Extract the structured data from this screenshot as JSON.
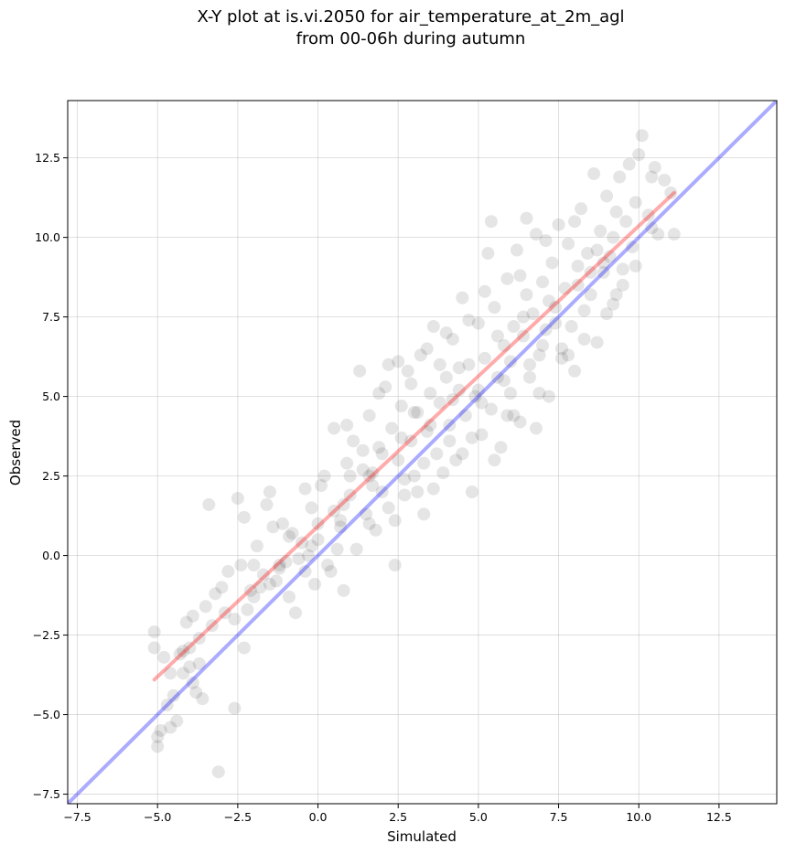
{
  "chart_data": {
    "type": "scatter",
    "title": "X-Y plot at is.vi.2050 for air_temperature_at_2m_agl",
    "subtitle": "from 00-06h during autumn",
    "xlabel": "Simulated",
    "ylabel": "Observed",
    "xlim": [
      -7.8,
      14.3
    ],
    "ylim": [
      -7.8,
      14.3
    ],
    "xticks": [
      -7.5,
      -5.0,
      -2.5,
      0.0,
      2.5,
      5.0,
      7.5,
      10.0,
      12.5
    ],
    "yticks": [
      -7.5,
      -5.0,
      -2.5,
      0.0,
      2.5,
      5.0,
      7.5,
      10.0,
      12.5
    ],
    "xtick_labels": [
      "−7.5",
      "−5.0",
      "−2.5",
      "0.0",
      "2.5",
      "5.0",
      "7.5",
      "10.0",
      "12.5"
    ],
    "ytick_labels": [
      "−7.5",
      "−5.0",
      "−2.5",
      "0.0",
      "2.5",
      "5.0",
      "7.5",
      "10.0",
      "12.5"
    ],
    "grid": true,
    "colors": {
      "points": "#000000",
      "identity_line": "#0000ff",
      "fit_line": "#ff0000"
    },
    "series": [
      {
        "type": "scatter",
        "points": [
          [
            -5.1,
            -2.4
          ],
          [
            -5.1,
            -2.9
          ],
          [
            -4.8,
            -3.2
          ],
          [
            -4.9,
            -5.5
          ],
          [
            -5.0,
            -5.7
          ],
          [
            -5.0,
            -6.0
          ],
          [
            -4.7,
            -4.7
          ],
          [
            -4.5,
            -4.4
          ],
          [
            -4.6,
            -5.4
          ],
          [
            -4.4,
            -5.2
          ],
          [
            -4.2,
            -3.0
          ],
          [
            -4.0,
            -3.5
          ],
          [
            -4.1,
            -2.1
          ],
          [
            -3.9,
            -1.9
          ],
          [
            -4.2,
            -3.7
          ],
          [
            -3.9,
            -4.0
          ],
          [
            -3.7,
            -2.6
          ],
          [
            -3.6,
            -4.5
          ],
          [
            -3.5,
            -1.6
          ],
          [
            -3.2,
            -1.2
          ],
          [
            -3.4,
            1.6
          ],
          [
            -3.1,
            -6.8
          ],
          [
            -2.8,
            -0.5
          ],
          [
            -2.6,
            -4.8
          ],
          [
            -2.5,
            1.8
          ],
          [
            -2.3,
            1.2
          ],
          [
            -2.3,
            -2.9
          ],
          [
            -2.1,
            -1.1
          ],
          [
            -1.9,
            0.3
          ],
          [
            -1.7,
            -0.6
          ],
          [
            -1.6,
            1.6
          ],
          [
            -1.4,
            0.9
          ],
          [
            -1.5,
            2.0
          ],
          [
            -1.2,
            -0.3
          ],
          [
            -1.1,
            1.0
          ],
          [
            -0.9,
            -1.3
          ],
          [
            -0.8,
            0.7
          ],
          [
            -0.7,
            -1.8
          ],
          [
            -0.5,
            0.4
          ],
          [
            -0.4,
            2.1
          ],
          [
            -0.3,
            0.0
          ],
          [
            -0.1,
            -0.9
          ],
          [
            0.0,
            1.0
          ],
          [
            0.2,
            2.5
          ],
          [
            0.3,
            -0.3
          ],
          [
            0.5,
            1.4
          ],
          [
            0.5,
            4.0
          ],
          [
            0.7,
            0.9
          ],
          [
            0.8,
            -1.1
          ],
          [
            0.9,
            2.9
          ],
          [
            1.0,
            1.9
          ],
          [
            1.1,
            3.6
          ],
          [
            1.2,
            0.2
          ],
          [
            1.4,
            2.7
          ],
          [
            1.5,
            1.3
          ],
          [
            1.6,
            4.4
          ],
          [
            1.7,
            2.2
          ],
          [
            1.8,
            0.8
          ],
          [
            1.9,
            3.4
          ],
          [
            2.0,
            2.0
          ],
          [
            2.1,
            5.3
          ],
          [
            2.2,
            1.5
          ],
          [
            2.3,
            4.0
          ],
          [
            2.4,
            -0.3
          ],
          [
            2.5,
            3.0
          ],
          [
            2.6,
            4.7
          ],
          [
            2.7,
            1.9
          ],
          [
            2.8,
            5.8
          ],
          [
            2.9,
            3.6
          ],
          [
            3.0,
            2.5
          ],
          [
            3.1,
            4.5
          ],
          [
            3.2,
            6.3
          ],
          [
            3.3,
            1.3
          ],
          [
            3.4,
            3.9
          ],
          [
            3.5,
            5.1
          ],
          [
            3.6,
            7.2
          ],
          [
            3.7,
            3.2
          ],
          [
            3.8,
            4.8
          ],
          [
            3.9,
            2.6
          ],
          [
            4.0,
            5.6
          ],
          [
            4.1,
            4.1
          ],
          [
            4.2,
            6.8
          ],
          [
            4.3,
            3.0
          ],
          [
            4.4,
            5.2
          ],
          [
            4.5,
            8.1
          ],
          [
            4.6,
            4.4
          ],
          [
            4.7,
            6.0
          ],
          [
            4.8,
            2.0
          ],
          [
            4.9,
            5.0
          ],
          [
            5.0,
            7.3
          ],
          [
            5.1,
            3.8
          ],
          [
            5.2,
            6.2
          ],
          [
            5.3,
            9.5
          ],
          [
            5.4,
            4.6
          ],
          [
            5.5,
            7.8
          ],
          [
            5.6,
            5.6
          ],
          [
            5.7,
            3.4
          ],
          [
            5.8,
            6.6
          ],
          [
            5.9,
            8.7
          ],
          [
            6.0,
            5.1
          ],
          [
            6.1,
            7.2
          ],
          [
            6.2,
            9.6
          ],
          [
            6.3,
            4.2
          ],
          [
            6.4,
            6.9
          ],
          [
            6.5,
            8.2
          ],
          [
            6.6,
            5.6
          ],
          [
            6.7,
            7.6
          ],
          [
            6.8,
            10.1
          ],
          [
            6.9,
            6.3
          ],
          [
            7.0,
            8.6
          ],
          [
            7.1,
            7.1
          ],
          [
            7.2,
            5.0
          ],
          [
            7.3,
            9.2
          ],
          [
            7.4,
            7.8
          ],
          [
            7.5,
            10.4
          ],
          [
            7.6,
            6.5
          ],
          [
            7.7,
            8.4
          ],
          [
            7.8,
            9.8
          ],
          [
            7.9,
            7.2
          ],
          [
            8.0,
            5.8
          ],
          [
            8.1,
            9.1
          ],
          [
            8.2,
            10.9
          ],
          [
            8.3,
            7.7
          ],
          [
            8.4,
            9.5
          ],
          [
            8.5,
            8.2
          ],
          [
            8.6,
            12.0
          ],
          [
            8.7,
            6.7
          ],
          [
            8.8,
            10.2
          ],
          [
            8.9,
            8.9
          ],
          [
            9.0,
            11.3
          ],
          [
            9.1,
            9.4
          ],
          [
            9.2,
            7.9
          ],
          [
            9.3,
            10.8
          ],
          [
            9.4,
            11.9
          ],
          [
            9.5,
            9.0
          ],
          [
            9.6,
            10.5
          ],
          [
            9.7,
            12.3
          ],
          [
            9.8,
            9.7
          ],
          [
            9.9,
            11.1
          ],
          [
            10.0,
            12.6
          ],
          [
            10.1,
            13.2
          ],
          [
            10.3,
            10.7
          ],
          [
            10.4,
            11.9
          ],
          [
            10.5,
            12.2
          ],
          [
            10.6,
            10.1
          ],
          [
            10.8,
            11.8
          ],
          [
            11.0,
            11.4
          ],
          [
            11.1,
            10.1
          ],
          [
            9.5,
            8.5
          ],
          [
            8.7,
            9.6
          ],
          [
            6.5,
            10.6
          ],
          [
            5.4,
            10.5
          ],
          [
            3.4,
            6.5
          ],
          [
            2.2,
            6.0
          ],
          [
            1.3,
            5.8
          ],
          [
            0.9,
            4.1
          ],
          [
            1.9,
            5.1
          ],
          [
            2.5,
            6.1
          ],
          [
            3.1,
            2.0
          ],
          [
            4.5,
            3.2
          ],
          [
            5.5,
            3.0
          ],
          [
            6.1,
            4.4
          ],
          [
            6.8,
            4.0
          ],
          [
            7.6,
            6.2
          ],
          [
            8.3,
            6.8
          ],
          [
            9.3,
            8.2
          ],
          [
            0.4,
            -0.5
          ],
          [
            -0.6,
            -0.1
          ],
          [
            -1.8,
            -1.0
          ],
          [
            -2.4,
            -0.3
          ],
          [
            -2.9,
            -1.8
          ],
          [
            -3.3,
            -2.2
          ],
          [
            -4.3,
            -3.1
          ],
          [
            -3.7,
            -3.4
          ],
          [
            -2.2,
            -1.7
          ],
          [
            -1.3,
            -0.8
          ],
          [
            -0.2,
            1.5
          ],
          [
            0.8,
            1.6
          ],
          [
            1.6,
            1.0
          ],
          [
            2.4,
            1.1
          ],
          [
            3.3,
            2.9
          ],
          [
            4.2,
            4.9
          ],
          [
            5.0,
            5.2
          ],
          [
            5.8,
            5.5
          ],
          [
            6.6,
            6.0
          ],
          [
            7.4,
            7.3
          ],
          [
            8.1,
            8.5
          ],
          [
            8.9,
            9.2
          ],
          [
            3.8,
            6.0
          ],
          [
            4.7,
            7.4
          ],
          [
            2.9,
            5.4
          ],
          [
            1.4,
            3.3
          ],
          [
            0.1,
            2.2
          ],
          [
            -0.9,
            0.6
          ],
          [
            -2.0,
            -0.3
          ],
          [
            -3.0,
            -1.0
          ],
          [
            6.3,
            8.8
          ],
          [
            7.1,
            9.9
          ],
          [
            8.0,
            10.5
          ],
          [
            5.2,
            8.3
          ],
          [
            4.0,
            7.0
          ],
          [
            3.0,
            4.5
          ],
          [
            2.0,
            3.2
          ],
          [
            1.0,
            2.5
          ],
          [
            0.0,
            0.5
          ],
          [
            -1.0,
            -0.2
          ],
          [
            -2.0,
            -1.3
          ],
          [
            -4.0,
            -2.9
          ],
          [
            -4.6,
            -3.7
          ],
          [
            -3.8,
            -4.3
          ],
          [
            3.6,
            2.1
          ],
          [
            4.8,
            3.7
          ],
          [
            5.9,
            4.4
          ],
          [
            6.9,
            5.1
          ],
          [
            7.8,
            6.3
          ],
          [
            9.0,
            7.6
          ],
          [
            9.9,
            9.1
          ],
          [
            10.4,
            10.3
          ],
          [
            2.7,
            2.4
          ],
          [
            1.6,
            2.5
          ],
          [
            0.6,
            0.2
          ],
          [
            -0.4,
            -0.5
          ],
          [
            -1.5,
            -0.9
          ],
          [
            -2.6,
            -2.0
          ],
          [
            5.6,
            6.9
          ],
          [
            6.4,
            7.5
          ],
          [
            7.2,
            8.0
          ],
          [
            8.5,
            8.9
          ],
          [
            9.2,
            10.0
          ],
          [
            4.4,
            5.9
          ],
          [
            3.5,
            4.1
          ],
          [
            2.6,
            3.7
          ],
          [
            1.7,
            2.6
          ],
          [
            0.7,
            1.1
          ],
          [
            -0.2,
            0.3
          ],
          [
            -1.2,
            -0.4
          ],
          [
            4.1,
            3.6
          ],
          [
            5.1,
            4.8
          ],
          [
            6.0,
            6.1
          ],
          [
            7.0,
            6.6
          ]
        ]
      },
      {
        "type": "line",
        "x": [
          -7.8,
          14.3
        ],
        "y": [
          -7.8,
          14.3
        ]
      },
      {
        "type": "line",
        "x": [
          -5.1,
          11.1
        ],
        "y": [
          -3.9,
          11.4
        ]
      }
    ]
  }
}
